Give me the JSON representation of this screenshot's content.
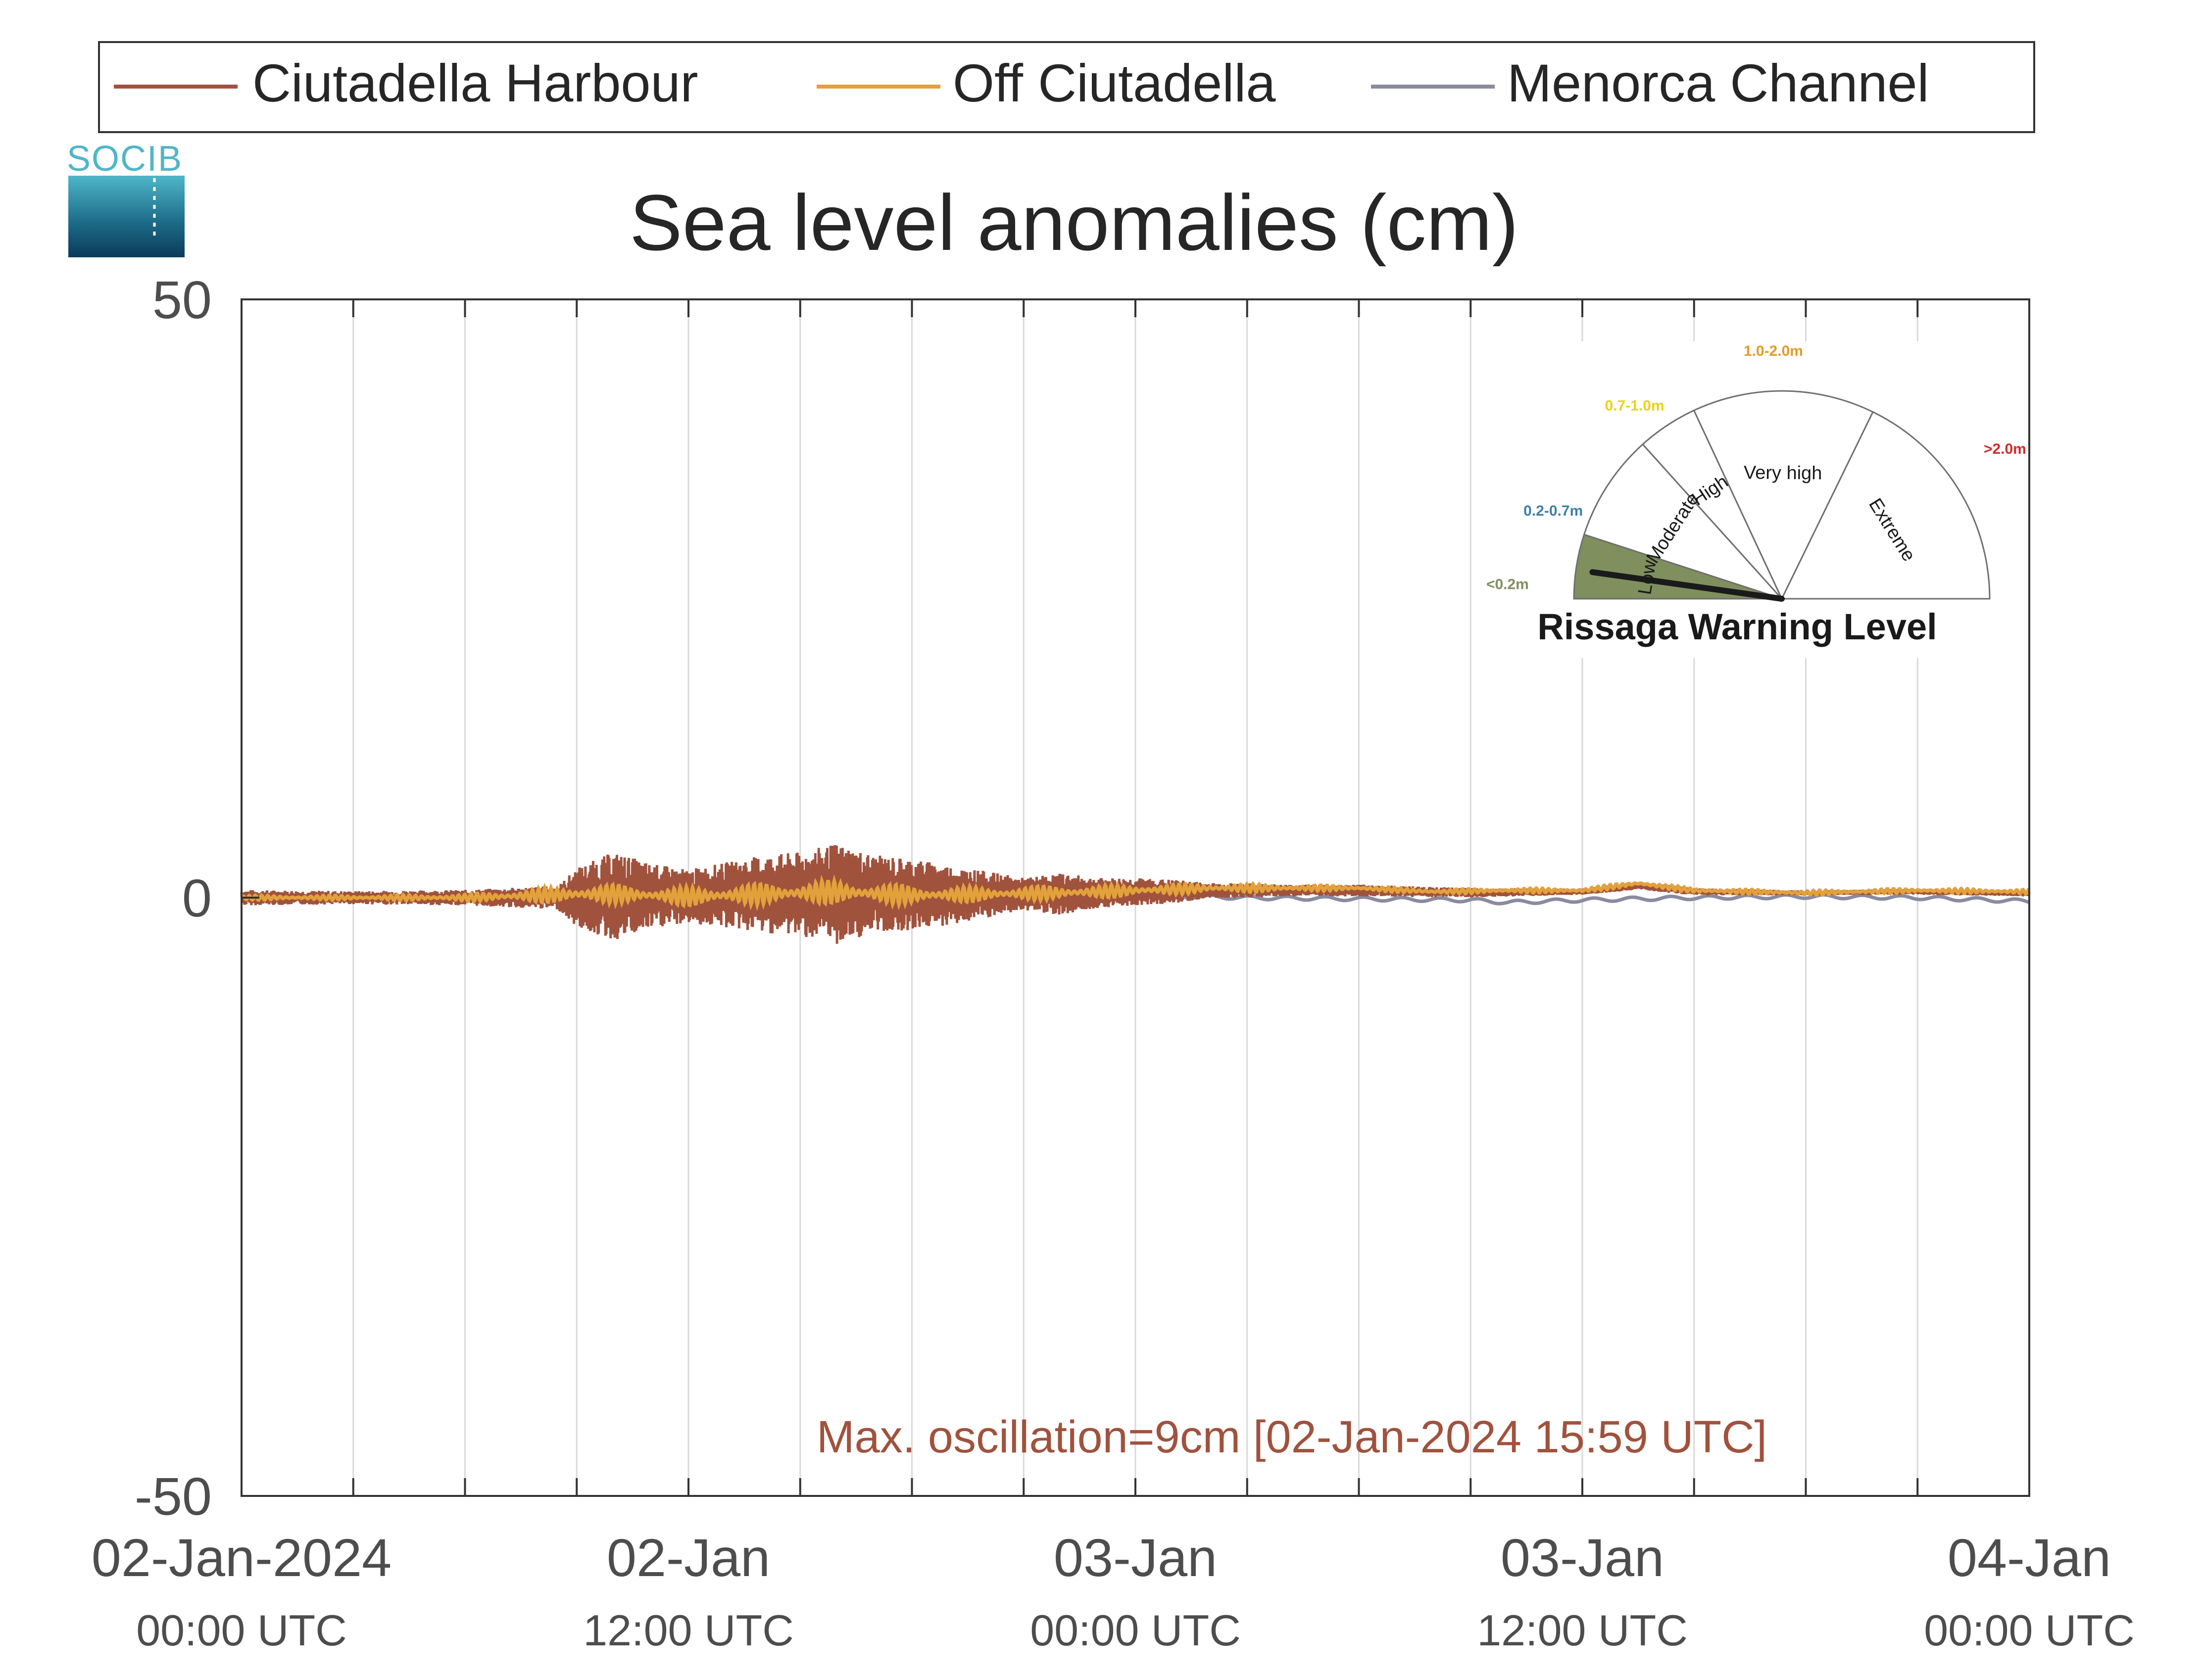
{
  "legend": [
    {
      "name": "Ciutadella Harbour",
      "color": "#A0523D"
    },
    {
      "name": "Off Ciutadella",
      "color": "#E3A13B"
    },
    {
      "name": "Menorca Channel",
      "color": "#8A8AA0"
    }
  ],
  "logo": {
    "text": "SOCIB"
  },
  "chart_data": {
    "type": "line",
    "title": "Sea level anomalies (cm)",
    "xlabel": "",
    "ylabel": "",
    "x_unit": "hours from 02-Jan-2024 00:00 UTC",
    "xlim": [
      0,
      48
    ],
    "ylim": [
      -50,
      50
    ],
    "yticks": [
      -50,
      0,
      50
    ],
    "ytick_labels": [
      "-50",
      "0",
      "50"
    ],
    "xticks": [
      {
        "x": 0,
        "date": "02-Jan-2024",
        "time": "00:00 UTC"
      },
      {
        "x": 12,
        "date": "02-Jan",
        "time": "12:00 UTC"
      },
      {
        "x": 24,
        "date": "03-Jan",
        "time": "00:00 UTC"
      },
      {
        "x": 36,
        "date": "03-Jan",
        "time": "12:00 UTC"
      },
      {
        "x": 48,
        "date": "04-Jan",
        "time": "00:00 UTC"
      }
    ],
    "grid": "vertical every 3 hours",
    "series": [
      {
        "name": "Ciutadella Harbour",
        "color": "#A0523D",
        "envelope": {
          "x": [
            0,
            3,
            6,
            8.5,
            9,
            10,
            11,
            12,
            13,
            14,
            15,
            16,
            17,
            18,
            19,
            20,
            21,
            22,
            23,
            24,
            25,
            26,
            27,
            28,
            30,
            33,
            36,
            37.5,
            39,
            42,
            45,
            48
          ],
          "upper": [
            0.5,
            0.5,
            0.7,
            1.0,
            2.5,
            4.0,
            3.0,
            2.5,
            3.0,
            3.5,
            4.0,
            5.5,
            4.0,
            3.5,
            3.0,
            2.5,
            1.5,
            2.0,
            1.5,
            1.5,
            1.5,
            1.0,
            1.0,
            1.0,
            1.0,
            0.8,
            0.5,
            0.8,
            0.5,
            0.3,
            0.3,
            0.2
          ],
          "lower": [
            -0.8,
            -0.6,
            -0.6,
            -1.0,
            -2.5,
            -3.5,
            -2.5,
            -2.0,
            -2.5,
            -3.0,
            -3.0,
            -3.0,
            -2.5,
            -2.5,
            -2.0,
            -1.5,
            -1.2,
            -1.5,
            -1.0,
            -0.8,
            -0.5,
            -0.3,
            -0.2,
            0.0,
            0.0,
            0.0,
            0.0,
            0.1,
            -0.1,
            -0.1,
            -0.2,
            -0.2
          ],
          "center": [
            0,
            0,
            0,
            0,
            0,
            0.1,
            0.1,
            0.1,
            0.2,
            0.3,
            0.3,
            0.3,
            0.3,
            0.3,
            0.2,
            0.2,
            0.3,
            0.3,
            0.4,
            0.5,
            0.5,
            0.6,
            0.6,
            0.6,
            0.6,
            0.4,
            0.5,
            1.0,
            0.5,
            0.4,
            0.5,
            0.3
          ]
        }
      },
      {
        "name": "Off Ciutadella",
        "color": "#E3A13B",
        "x": [
          0,
          3,
          6,
          8,
          9,
          10,
          11,
          12,
          14,
          16,
          18,
          20,
          22,
          24,
          26,
          28,
          30,
          32,
          34,
          36,
          37.5,
          39,
          42,
          45,
          48
        ],
        "y": [
          0,
          0,
          0,
          0.2,
          0.3,
          0.3,
          0.2,
          0.1,
          0.3,
          0.5,
          0.2,
          0.3,
          0.4,
          0.6,
          0.8,
          0.8,
          0.8,
          0.5,
          0.6,
          0.6,
          1.2,
          0.6,
          0.4,
          0.6,
          0.5
        ],
        "amplitude": [
          0.2,
          0.2,
          0.3,
          0.6,
          0.8,
          0.8,
          0.7,
          0.8,
          0.9,
          1.0,
          0.8,
          0.6,
          0.6,
          0.5,
          0.4,
          0.3,
          0.2,
          0.2,
          0.2,
          0.2,
          0.2,
          0.2,
          0.2,
          0.2,
          0.2
        ]
      },
      {
        "name": "Menorca Channel",
        "color": "#8A8AA0",
        "x": [
          0,
          3,
          6,
          9,
          12,
          15,
          18,
          19,
          21,
          24,
          27,
          30,
          33,
          34,
          36,
          37.5,
          39,
          42,
          45,
          48
        ],
        "y": [
          0,
          -0.1,
          0,
          0.2,
          0,
          0.3,
          -0.5,
          -0.6,
          -0.1,
          0.2,
          0.0,
          -0.1,
          -0.2,
          -0.4,
          -0.2,
          -0.1,
          0.0,
          0.1,
          0.0,
          -0.3
        ]
      }
    ],
    "annotation": "Max. oscillation=9cm [02-Jan-2024 15:59 UTC]"
  },
  "gauge": {
    "title": "Rissaga Warning Level",
    "value_level": "Low",
    "needle_color": "#1a1a1a",
    "levels": [
      {
        "label": "Low",
        "range": "<0.2m",
        "color": "#7F8F5E"
      },
      {
        "label": "Moderate",
        "range": "0.2-0.7m",
        "color": "#3D7FA8"
      },
      {
        "label": "High",
        "range": "0.7-1.0m",
        "color": "#E8D21A"
      },
      {
        "label": "Very high",
        "range": "1.0-2.0m",
        "color": "#E39B26"
      },
      {
        "label": "Extreme",
        "range": ">2.0m",
        "color": "#D42A2A"
      }
    ]
  }
}
